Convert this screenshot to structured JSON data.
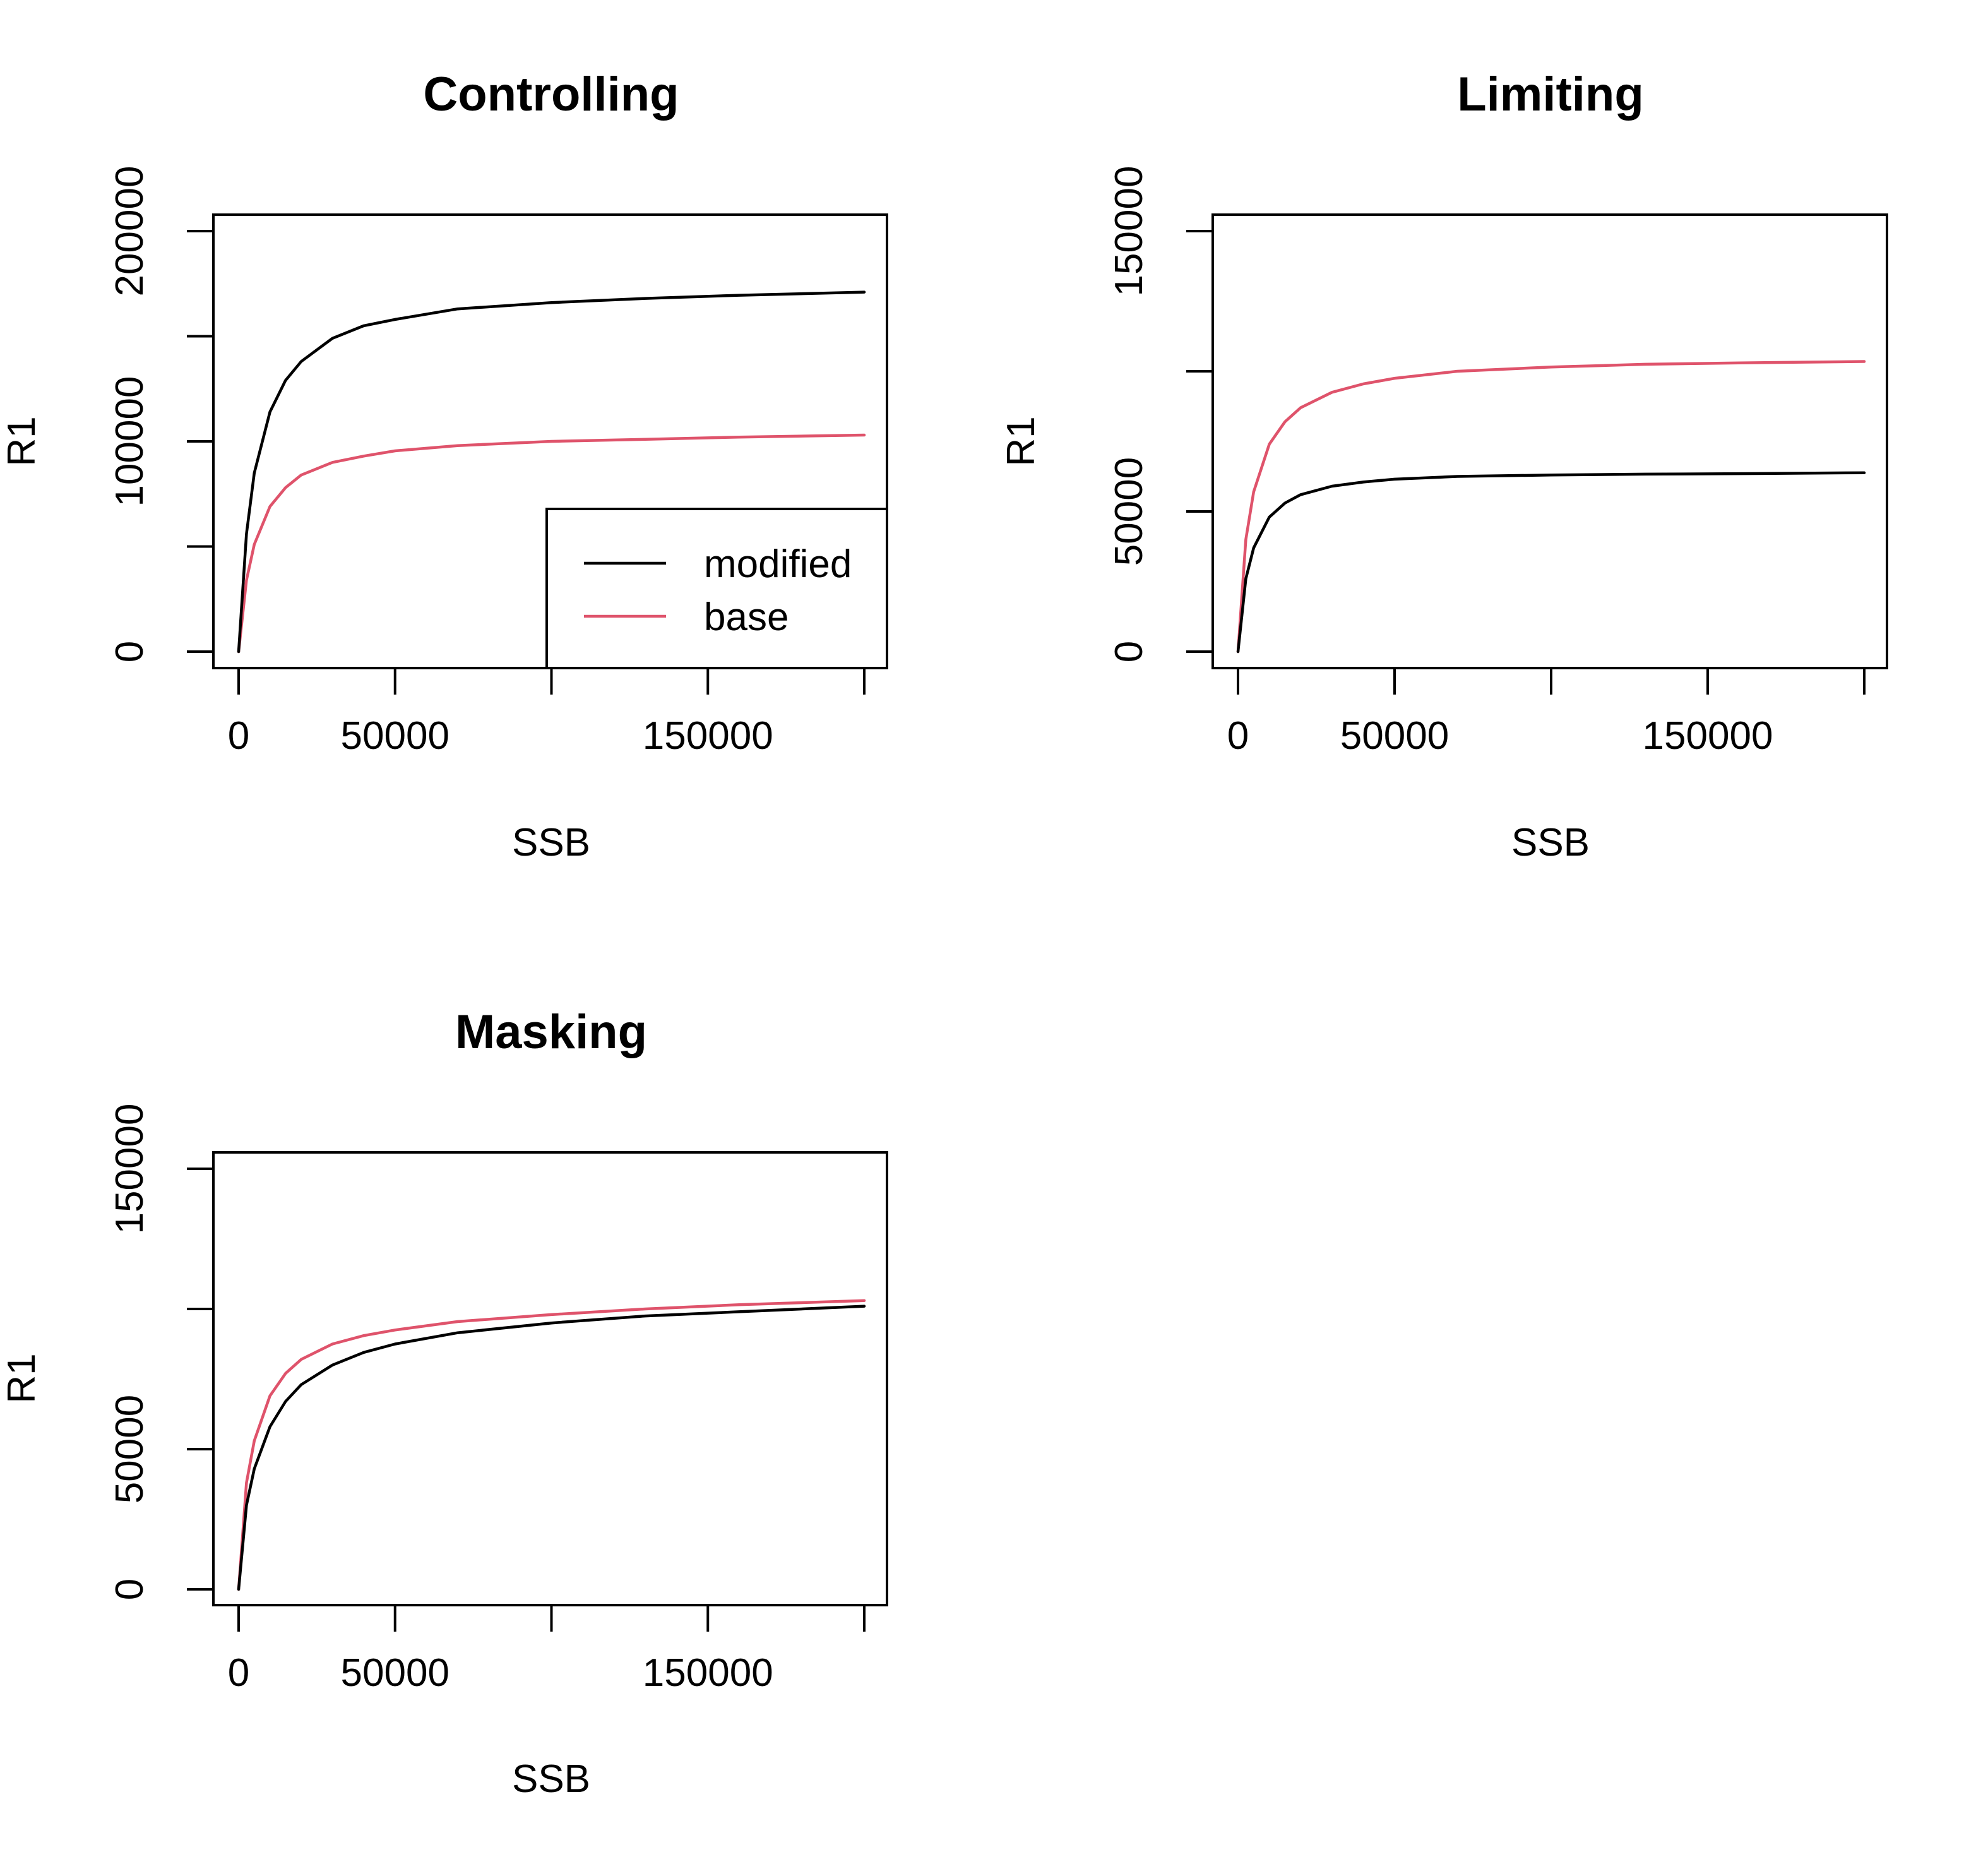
{
  "chart_data": [
    {
      "type": "line",
      "title": "Controlling",
      "xlabel": "SSB",
      "ylabel": "R1",
      "xlim": [
        0,
        200000
      ],
      "ylim": [
        0,
        200000
      ],
      "x_ticks": [
        0,
        50000,
        100000,
        150000,
        200000
      ],
      "x_tick_labels": [
        "0",
        "50000",
        "",
        "150000",
        ""
      ],
      "y_ticks": [
        0,
        50000,
        100000,
        150000,
        200000
      ],
      "y_tick_labels": [
        "0",
        "",
        "100000",
        "",
        "200000"
      ],
      "grid": false,
      "legend": {
        "position": "bottom-right",
        "entries": [
          "modified",
          "base"
        ]
      },
      "series": [
        {
          "name": "modified",
          "color": "#000000",
          "x": [
            0,
            2500,
            5000,
            10000,
            15000,
            20000,
            30000,
            40000,
            50000,
            70000,
            100000,
            130000,
            160000,
            200000
          ],
          "y": [
            0,
            56000,
            85000,
            114000,
            129000,
            138000,
            149000,
            155000,
            158000,
            163000,
            166000,
            168000,
            169500,
            171000
          ]
        },
        {
          "name": "base",
          "color": "#DF536B",
          "x": [
            0,
            2500,
            5000,
            10000,
            15000,
            20000,
            30000,
            40000,
            50000,
            70000,
            100000,
            130000,
            160000,
            200000
          ],
          "y": [
            0,
            34000,
            51000,
            69000,
            78000,
            84000,
            90000,
            93000,
            95500,
            98000,
            100000,
            101000,
            102000,
            103000
          ]
        }
      ]
    },
    {
      "type": "line",
      "title": "Limiting",
      "xlabel": "SSB",
      "ylabel": "R1",
      "xlim": [
        0,
        200000
      ],
      "ylim": [
        0,
        150000
      ],
      "x_ticks": [
        0,
        50000,
        100000,
        150000,
        200000
      ],
      "x_tick_labels": [
        "0",
        "50000",
        "",
        "150000",
        ""
      ],
      "y_ticks": [
        0,
        50000,
        100000,
        150000
      ],
      "y_tick_labels": [
        "0",
        "50000",
        "",
        "150000"
      ],
      "grid": false,
      "series": [
        {
          "name": "modified",
          "color": "#000000",
          "x": [
            0,
            2500,
            5000,
            10000,
            15000,
            20000,
            30000,
            40000,
            50000,
            70000,
            100000,
            130000,
            160000,
            200000
          ],
          "y": [
            0,
            26000,
            37000,
            48000,
            53000,
            56000,
            59000,
            60500,
            61500,
            62500,
            63000,
            63300,
            63500,
            63800
          ]
        },
        {
          "name": "base",
          "color": "#DF536B",
          "x": [
            0,
            2500,
            5000,
            10000,
            15000,
            20000,
            30000,
            40000,
            50000,
            70000,
            100000,
            130000,
            160000,
            200000
          ],
          "y": [
            0,
            40000,
            57000,
            74000,
            82000,
            87000,
            92500,
            95500,
            97500,
            100000,
            101500,
            102500,
            103000,
            103500
          ]
        }
      ]
    },
    {
      "type": "line",
      "title": "Masking",
      "xlabel": "SSB",
      "ylabel": "R1",
      "xlim": [
        0,
        200000
      ],
      "ylim": [
        0,
        150000
      ],
      "x_ticks": [
        0,
        50000,
        100000,
        150000,
        200000
      ],
      "x_tick_labels": [
        "0",
        "50000",
        "",
        "150000",
        ""
      ],
      "y_ticks": [
        0,
        50000,
        100000,
        150000
      ],
      "y_tick_labels": [
        "0",
        "50000",
        "",
        "150000"
      ],
      "grid": false,
      "series": [
        {
          "name": "modified",
          "color": "#000000",
          "x": [
            0,
            2500,
            5000,
            10000,
            15000,
            20000,
            30000,
            40000,
            50000,
            70000,
            100000,
            130000,
            160000,
            200000
          ],
          "y": [
            0,
            30000,
            43000,
            58000,
            67000,
            73000,
            80000,
            84500,
            87500,
            91500,
            95000,
            97500,
            99000,
            101000
          ]
        },
        {
          "name": "base",
          "color": "#DF536B",
          "x": [
            0,
            2500,
            5000,
            10000,
            15000,
            20000,
            30000,
            40000,
            50000,
            70000,
            100000,
            130000,
            160000,
            200000
          ],
          "y": [
            0,
            38000,
            53000,
            69000,
            77000,
            82000,
            87500,
            90500,
            92500,
            95500,
            98000,
            100000,
            101500,
            103000
          ]
        }
      ]
    }
  ]
}
